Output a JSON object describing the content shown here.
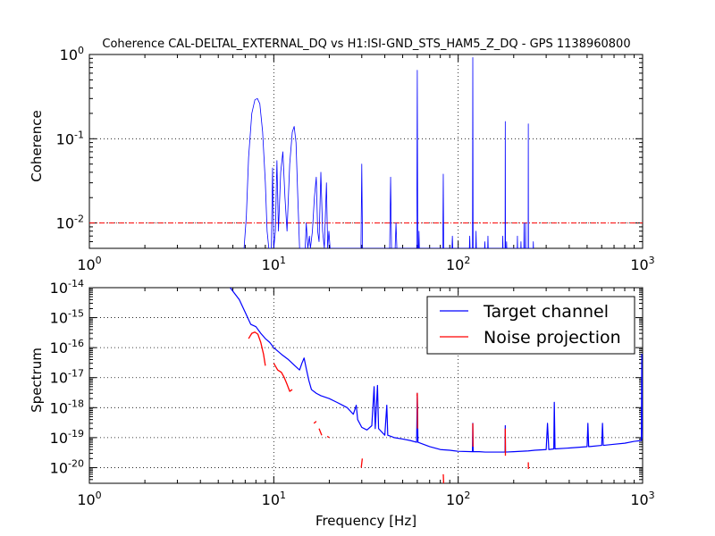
{
  "figure": {
    "title": "Coherence CAL-DELTAL_EXTERNAL_DQ vs H1:ISI-GND_STS_HAM5_Z_DQ - GPS 1138960800"
  },
  "chart_data": [
    {
      "type": "line",
      "title": "Coherence CAL-DELTAL_EXTERNAL_DQ vs H1:ISI-GND_STS_HAM5_Z_DQ - GPS 1138960800",
      "xlabel": "",
      "ylabel": "Coherence",
      "xscale": "log",
      "yscale": "log",
      "xlim": [
        1,
        1000
      ],
      "ylim": [
        0.005,
        1
      ],
      "grid": true,
      "x_ticks": [
        {
          "value": 1,
          "base": "10",
          "exp": "0"
        },
        {
          "value": 10,
          "base": "10",
          "exp": "1"
        },
        {
          "value": 100,
          "base": "10",
          "exp": "2"
        },
        {
          "value": 1000,
          "base": "10",
          "exp": "3"
        }
      ],
      "y_ticks": [
        {
          "value": 0.01,
          "base": "10",
          "exp": "-2"
        },
        {
          "value": 0.1,
          "base": "10",
          "exp": "-1"
        },
        {
          "value": 1,
          "base": "10",
          "exp": "0"
        }
      ],
      "threshold": {
        "value": 0.01,
        "color": "#ff0000",
        "style": "dash-dot"
      },
      "series": [
        {
          "color": "#0000ff",
          "points": [
            [
              6.9,
              0.005
            ],
            [
              7.1,
              0.012
            ],
            [
              7.3,
              0.06
            ],
            [
              7.6,
              0.2
            ],
            [
              7.9,
              0.29
            ],
            [
              8.15,
              0.3
            ],
            [
              8.4,
              0.26
            ],
            [
              8.7,
              0.12
            ],
            [
              9.0,
              0.03
            ],
            [
              9.2,
              0.008
            ],
            [
              9.4,
              0.005
            ],
            [
              9.7,
              0.005
            ],
            [
              9.85,
              0.045
            ],
            [
              10.0,
              0.005
            ],
            [
              10.2,
              0.008
            ],
            [
              10.4,
              0.055
            ],
            [
              10.6,
              0.008
            ],
            [
              10.9,
              0.04
            ],
            [
              11.2,
              0.07
            ],
            [
              11.5,
              0.02
            ],
            [
              11.8,
              0.008
            ],
            [
              12.2,
              0.05
            ],
            [
              12.6,
              0.12
            ],
            [
              12.9,
              0.14
            ],
            [
              13.2,
              0.09
            ],
            [
              13.5,
              0.02
            ],
            [
              13.8,
              0.005
            ],
            [
              14.8,
              0.005
            ],
            [
              15.0,
              0.01
            ],
            [
              15.3,
              0.005
            ],
            [
              15.6,
              0.007
            ],
            [
              15.8,
              0.005
            ],
            [
              16.2,
              0.008
            ],
            [
              16.6,
              0.02
            ],
            [
              17.0,
              0.035
            ],
            [
              17.3,
              0.008
            ],
            [
              17.6,
              0.006
            ],
            [
              18.0,
              0.04
            ],
            [
              18.4,
              0.008
            ],
            [
              18.8,
              0.005
            ],
            [
              19.3,
              0.03
            ],
            [
              19.6,
              0.005
            ],
            [
              19.9,
              0.008
            ],
            [
              20.2,
              0.005
            ],
            [
              29.7,
              0.005
            ],
            [
              30.0,
              0.05
            ],
            [
              30.3,
              0.005
            ],
            [
              42.5,
              0.005
            ],
            [
              43.0,
              0.035
            ],
            [
              43.5,
              0.005
            ],
            [
              45.5,
              0.005
            ],
            [
              46.0,
              0.01
            ],
            [
              46.5,
              0.005
            ],
            [
              59.6,
              0.005
            ],
            [
              60.0,
              0.65
            ],
            [
              60.4,
              0.005
            ],
            [
              61.0,
              0.005
            ],
            [
              61.3,
              0.008
            ],
            [
              61.6,
              0.005
            ],
            [
              82.5,
              0.005
            ],
            [
              83.0,
              0.038
            ],
            [
              83.5,
              0.005
            ],
            [
              92.5,
              0.005
            ],
            [
              93.0,
              0.007
            ],
            [
              93.5,
              0.005
            ],
            [
              115.0,
              0.005
            ],
            [
              115.5,
              0.007
            ],
            [
              116.0,
              0.005
            ],
            [
              119.5,
              0.005
            ],
            [
              120.0,
              0.92
            ],
            [
              120.5,
              0.005
            ],
            [
              124.5,
              0.005
            ],
            [
              125.0,
              0.008
            ],
            [
              125.5,
              0.005
            ],
            [
              139.0,
              0.005
            ],
            [
              139.5,
              0.006
            ],
            [
              140.0,
              0.005
            ],
            [
              144.5,
              0.005
            ],
            [
              145.0,
              0.007
            ],
            [
              145.5,
              0.005
            ],
            [
              174.0,
              0.005
            ],
            [
              174.5,
              0.007
            ],
            [
              175.0,
              0.005
            ],
            [
              179.5,
              0.005
            ],
            [
              180.0,
              0.16
            ],
            [
              180.5,
              0.005
            ],
            [
              182.5,
              0.005
            ],
            [
              183.0,
              0.006
            ],
            [
              183.5,
              0.005
            ],
            [
              209.0,
              0.005
            ],
            [
              209.5,
              0.007
            ],
            [
              210.0,
              0.005
            ],
            [
              218.5,
              0.005
            ],
            [
              219.0,
              0.006
            ],
            [
              219.5,
              0.005
            ],
            [
              227.0,
              0.005
            ],
            [
              227.5,
              0.01
            ],
            [
              228.0,
              0.005
            ],
            [
              231.5,
              0.005
            ],
            [
              232.0,
              0.01
            ],
            [
              232.5,
              0.005
            ],
            [
              239.5,
              0.005
            ],
            [
              240.0,
              0.15
            ],
            [
              240.5,
              0.005
            ],
            [
              255.0,
              0.005
            ],
            [
              255.5,
              0.006
            ],
            [
              256.0,
              0.005
            ]
          ]
        }
      ]
    },
    {
      "type": "line",
      "title": "",
      "xlabel": "Frequency [Hz]",
      "ylabel": "Spectrum",
      "xscale": "log",
      "yscale": "log",
      "xlim": [
        1,
        1000
      ],
      "ylim": [
        3e-21,
        1e-14
      ],
      "grid": true,
      "legend_position": "top-right",
      "x_ticks": [
        {
          "value": 1,
          "base": "10",
          "exp": "0"
        },
        {
          "value": 10,
          "base": "10",
          "exp": "1"
        },
        {
          "value": 100,
          "base": "10",
          "exp": "2"
        },
        {
          "value": 1000,
          "base": "10",
          "exp": "3"
        }
      ],
      "y_ticks": [
        {
          "value": 1e-20,
          "base": "10",
          "exp": "-20"
        },
        {
          "value": 1e-19,
          "base": "10",
          "exp": "-19"
        },
        {
          "value": 1e-18,
          "base": "10",
          "exp": "-18"
        },
        {
          "value": 1e-17,
          "base": "10",
          "exp": "-17"
        },
        {
          "value": 1e-16,
          "base": "10",
          "exp": "-16"
        },
        {
          "value": 1e-15,
          "base": "10",
          "exp": "-15"
        },
        {
          "value": 1e-14,
          "base": "10",
          "exp": "-14"
        }
      ],
      "series": [
        {
          "name": "Target channel",
          "color": "#0000ff",
          "points": [
            [
              5.8,
              1e-14
            ],
            [
              6.5,
              4e-15
            ],
            [
              7.0,
              1.5e-15
            ],
            [
              7.5,
              6e-16
            ],
            [
              8.0,
              5e-16
            ],
            [
              8.5,
              3e-16
            ],
            [
              9.0,
              2e-16
            ],
            [
              9.5,
              1.5e-16
            ],
            [
              10.0,
              1e-16
            ],
            [
              11.0,
              6e-17
            ],
            [
              12.0,
              4e-17
            ],
            [
              13.0,
              2.5e-17
            ],
            [
              13.8,
              1.8e-17
            ],
            [
              14.2,
              3e-17
            ],
            [
              14.6,
              4.5e-17
            ],
            [
              15.0,
              2e-17
            ],
            [
              15.5,
              8e-18
            ],
            [
              16.0,
              4e-18
            ],
            [
              17.0,
              3e-18
            ],
            [
              18.0,
              2.5e-18
            ],
            [
              20.0,
              2e-18
            ],
            [
              22.0,
              1.5e-18
            ],
            [
              25.0,
              1e-18
            ],
            [
              27.0,
              6e-19
            ],
            [
              28.0,
              1.2e-18
            ],
            [
              28.5,
              4e-19
            ],
            [
              30.0,
              2.2e-19
            ],
            [
              32.0,
              1.8e-19
            ],
            [
              34.0,
              2.5e-19
            ],
            [
              35.0,
              5e-18
            ],
            [
              35.5,
              2e-19
            ],
            [
              36.5,
              5.5e-18
            ],
            [
              37.0,
              2e-19
            ],
            [
              40.0,
              1.2e-19
            ],
            [
              41.0,
              1.2e-18
            ],
            [
              41.5,
              1.2e-19
            ],
            [
              45.0,
              1e-19
            ],
            [
              50.0,
              9e-20
            ],
            [
              55.0,
              8e-20
            ],
            [
              59.5,
              7e-20
            ],
            [
              60.0,
              3e-18
            ],
            [
              60.5,
              7e-20
            ],
            [
              70.0,
              5e-20
            ],
            [
              80.0,
              4e-20
            ],
            [
              90.0,
              3.8e-20
            ],
            [
              100.0,
              3.5e-20
            ],
            [
              119.5,
              3.4e-20
            ],
            [
              120.0,
              3e-19
            ],
            [
              120.5,
              3.4e-20
            ],
            [
              130.0,
              3.4e-20
            ],
            [
              140.0,
              3.3e-20
            ],
            [
              160.0,
              3.3e-20
            ],
            [
              179.5,
              3.3e-20
            ],
            [
              180.0,
              2.5e-19
            ],
            [
              180.5,
              3.3e-20
            ],
            [
              200.0,
              3.4e-20
            ],
            [
              240.0,
              3.6e-20
            ],
            [
              260.0,
              3.8e-20
            ],
            [
              300.0,
              4e-20
            ],
            [
              305.0,
              3e-19
            ],
            [
              310.0,
              4e-20
            ],
            [
              330.0,
              4.2e-20
            ],
            [
              332.0,
              1.5e-18
            ],
            [
              335.0,
              4.2e-20
            ],
            [
              400.0,
              4.5e-20
            ],
            [
              500.0,
              5e-20
            ],
            [
              505.0,
              3e-19
            ],
            [
              510.0,
              5e-20
            ],
            [
              600.0,
              5.5e-20
            ],
            [
              606.0,
              3e-19
            ],
            [
              612.0,
              5.5e-20
            ],
            [
              700.0,
              6e-20
            ],
            [
              800.0,
              6.5e-20
            ],
            [
              900.0,
              7.5e-20
            ],
            [
              985.0,
              8e-20
            ],
            [
              990.0,
              6e-17
            ],
            [
              1000.0,
              9e-20
            ]
          ]
        },
        {
          "name": "Noise projection",
          "color": "#ff0000",
          "points": [
            [
              7.3,
              2e-16
            ],
            [
              7.6,
              3e-16
            ],
            [
              7.9,
              3.3e-16
            ],
            [
              8.2,
              2.8e-16
            ],
            [
              8.5,
              1.5e-16
            ],
            [
              8.8,
              6e-17
            ],
            [
              9.0,
              2.5e-17
            ],
            null,
            [
              10.0,
              3e-17
            ],
            [
              10.5,
              1.8e-17
            ],
            [
              11.0,
              1.5e-17
            ],
            [
              11.4,
              1e-17
            ],
            [
              11.8,
              6e-18
            ],
            [
              12.2,
              3.5e-18
            ],
            [
              12.6,
              4e-18
            ],
            null,
            [
              16.5,
              3e-19
            ],
            [
              17.0,
              3.5e-19
            ],
            null,
            [
              17.6,
              2e-19
            ],
            [
              18.2,
              1.2e-19
            ],
            null,
            [
              19.5,
              1.1e-19
            ],
            [
              20.0,
              1e-19
            ],
            null,
            [
              29.8,
              1e-20
            ],
            [
              30.2,
              2e-20
            ],
            null,
            [
              59.8,
              2.5e-18
            ],
            [
              60.0,
              3e-18
            ],
            [
              60.2,
              2e-19
            ],
            null,
            [
              83.0,
              6e-21
            ],
            [
              83.4,
              3e-21
            ],
            null,
            [
              120.0,
              3e-19
            ],
            [
              120.3,
              5e-20
            ],
            null,
            [
              180.0,
              2e-19
            ],
            [
              180.3,
              2.5e-20
            ],
            null,
            [
              240.0,
              1.5e-20
            ],
            [
              240.3,
              9e-21
            ]
          ]
        }
      ]
    }
  ]
}
